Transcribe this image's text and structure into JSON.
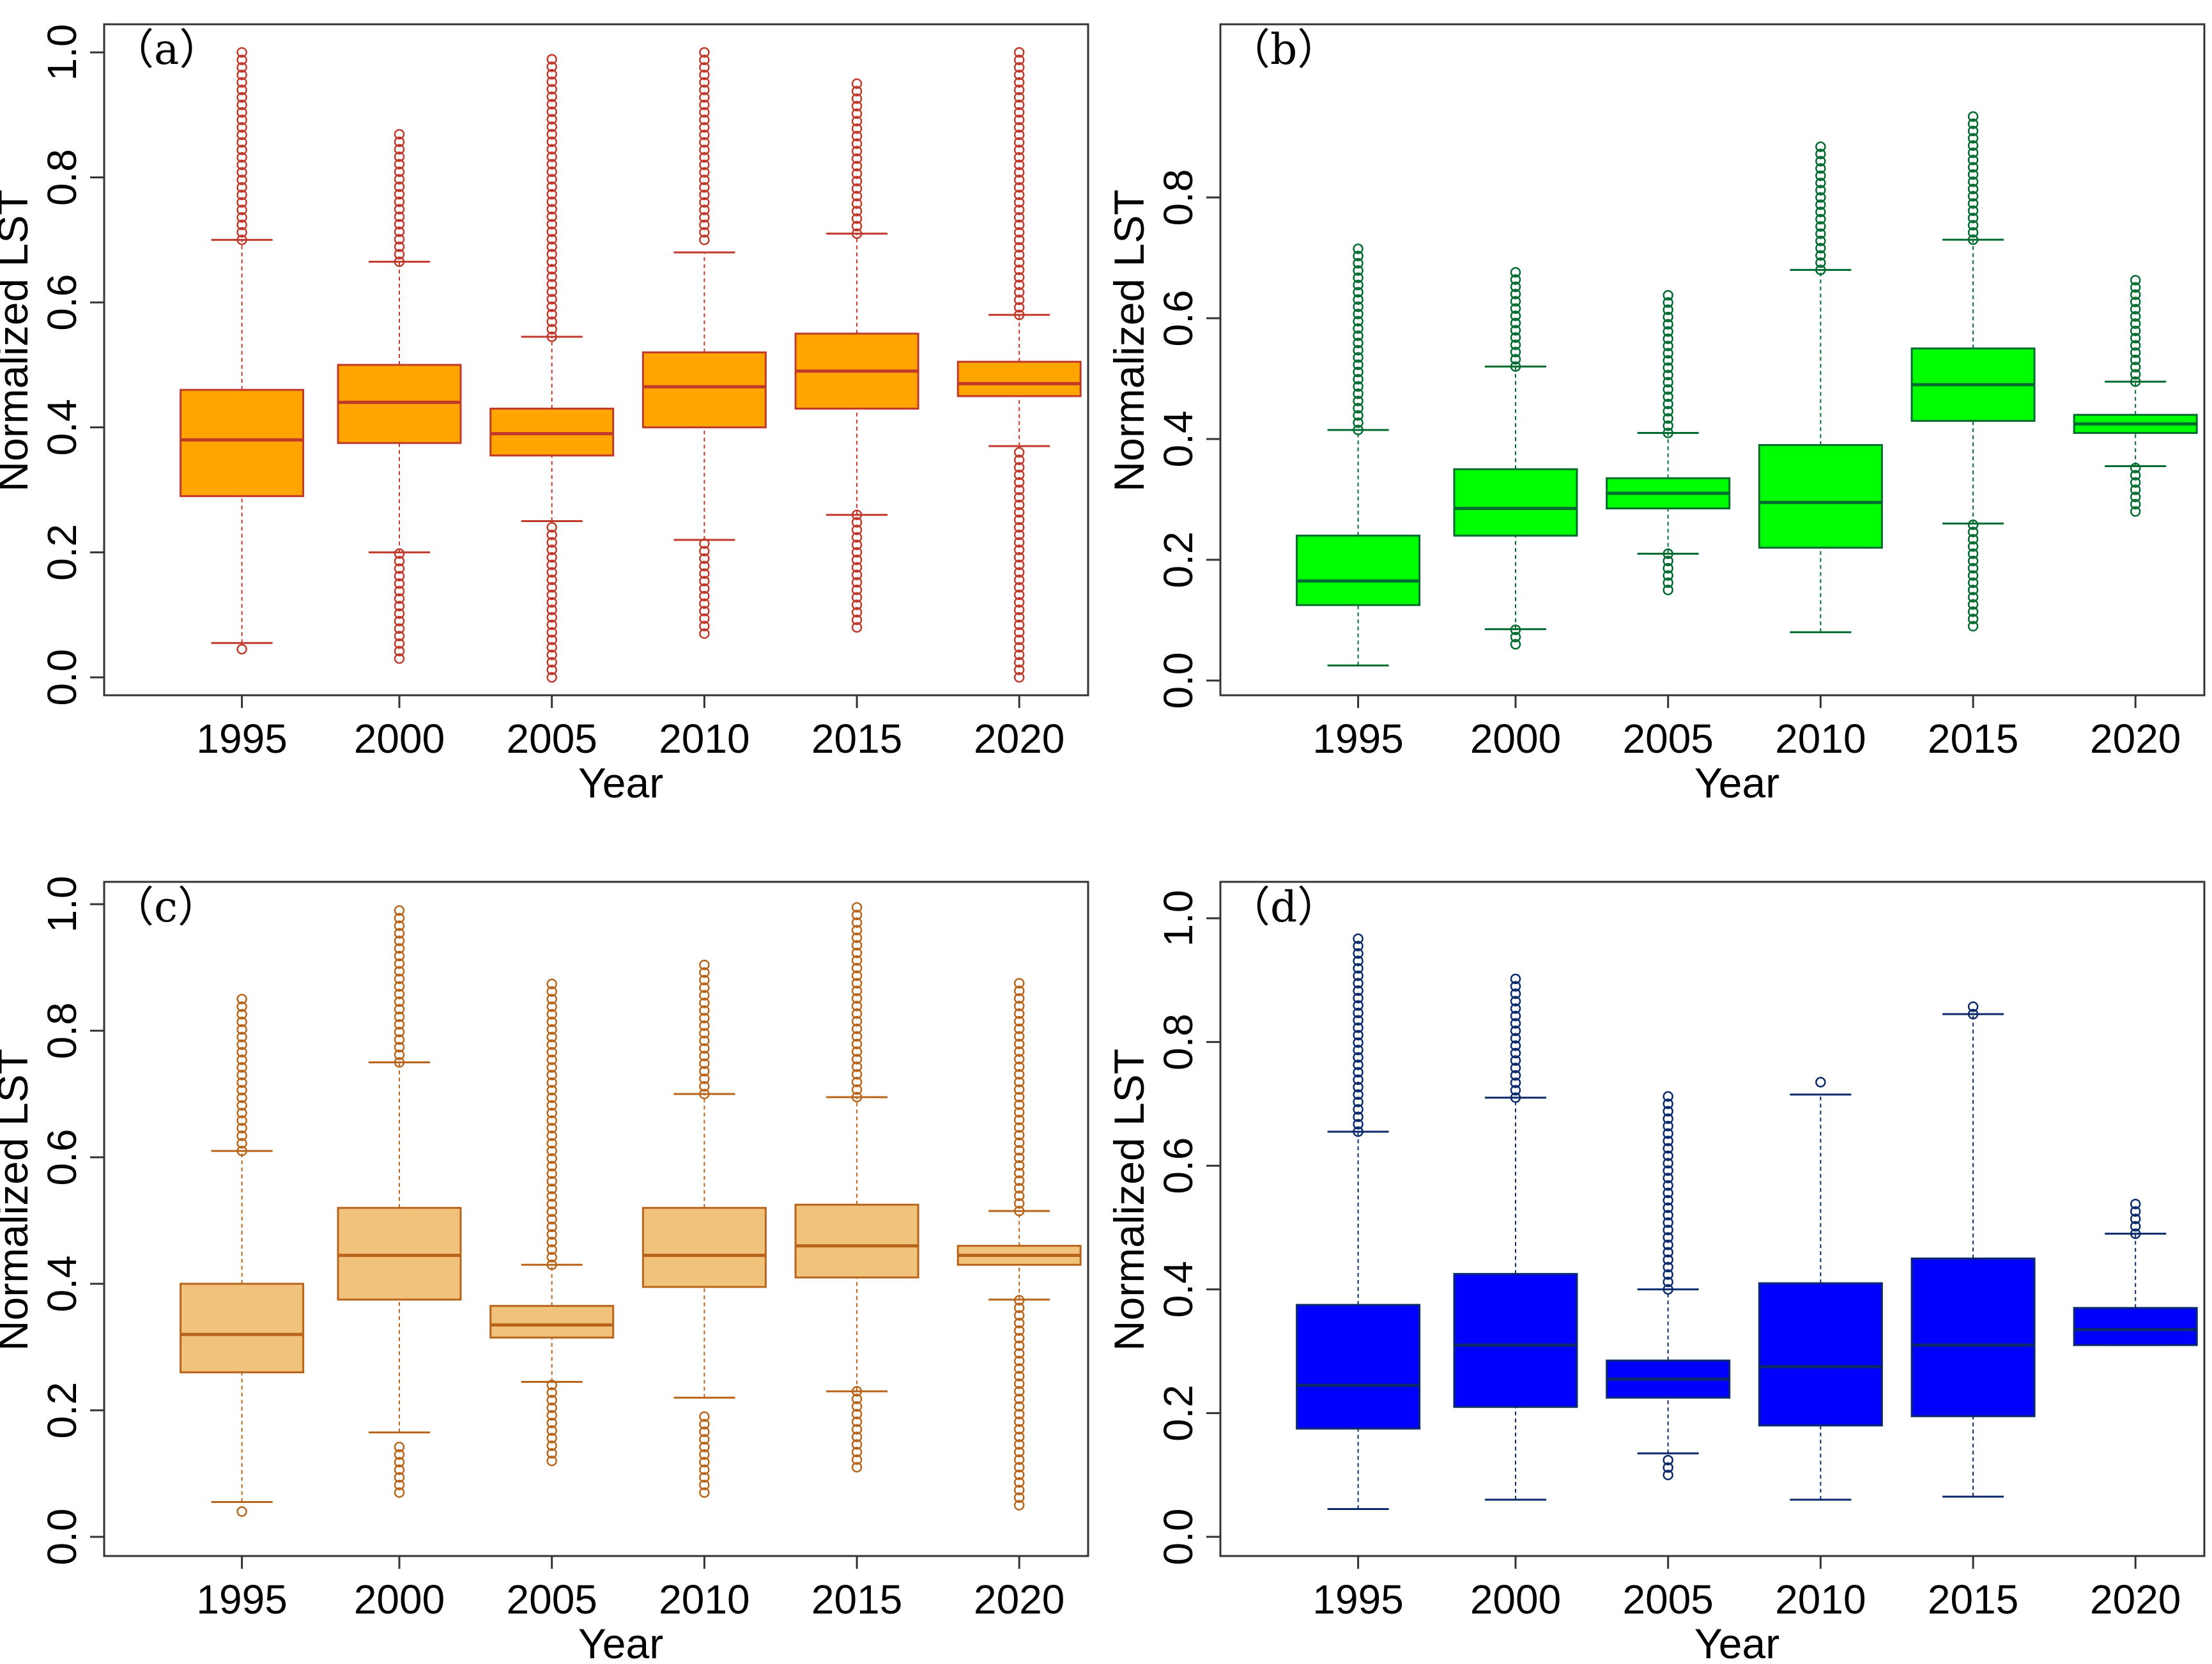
{
  "chart_data": [
    {
      "type": "box",
      "panel_label": "（a）",
      "xlabel": "Year",
      "ylabel": "Normalized LST",
      "ylim": [
        0,
        1.0
      ],
      "yticks": [
        "0.0",
        "0.2",
        "0.4",
        "0.6",
        "0.8",
        "1.0"
      ],
      "categories": [
        "1995",
        "2000",
        "2005",
        "2010",
        "2015",
        "2020"
      ],
      "colors": {
        "box_fill": "#FFA500",
        "line": "#C0392B"
      },
      "boxes": [
        {
          "q1": 0.29,
          "median": 0.38,
          "q3": 0.46,
          "whisker_low": 0.055,
          "whisker_high": 0.7,
          "outliers_low": [
            0.045
          ],
          "outliers_high": [
            0.7,
            1.0
          ]
        },
        {
          "q1": 0.375,
          "median": 0.44,
          "q3": 0.5,
          "whisker_low": 0.2,
          "whisker_high": 0.665,
          "outliers_low": [
            0.03,
            0.2
          ],
          "outliers_high": [
            0.665,
            0.88
          ]
        },
        {
          "q1": 0.355,
          "median": 0.39,
          "q3": 0.43,
          "whisker_low": 0.25,
          "whisker_high": 0.545,
          "outliers_low": [
            0.0,
            0.25
          ],
          "outliers_high": [
            0.545,
            1.0
          ]
        },
        {
          "q1": 0.4,
          "median": 0.465,
          "q3": 0.52,
          "whisker_low": 0.22,
          "whisker_high": 0.68,
          "outliers_low": [
            0.07,
            0.22
          ],
          "outliers_high": [
            0.7,
            1.0
          ]
        },
        {
          "q1": 0.43,
          "median": 0.49,
          "q3": 0.55,
          "whisker_low": 0.26,
          "whisker_high": 0.71,
          "outliers_low": [
            0.08,
            0.26
          ],
          "outliers_high": [
            0.71,
            0.95
          ]
        },
        {
          "q1": 0.45,
          "median": 0.47,
          "q3": 0.505,
          "whisker_low": 0.37,
          "whisker_high": 0.58,
          "outliers_low": [
            0.0,
            0.37
          ],
          "outliers_high": [
            0.58,
            1.0
          ]
        }
      ]
    },
    {
      "type": "box",
      "panel_label": "（b）",
      "xlabel": "Year",
      "ylabel": "Normalized LST",
      "ylim": [
        0,
        0.95
      ],
      "yticks": [
        "0.0",
        "0.2",
        "0.4",
        "0.6",
        "0.8"
      ],
      "categories": [
        "1995",
        "2000",
        "2005",
        "2010",
        "2015",
        "2020"
      ],
      "colors": {
        "box_fill": "#00FF00",
        "line": "#006B2E"
      },
      "boxes": [
        {
          "q1": 0.125,
          "median": 0.165,
          "q3": 0.24,
          "whisker_low": 0.025,
          "whisker_high": 0.415,
          "outliers_low": [],
          "outliers_high": [
            0.415,
            0.72
          ]
        },
        {
          "q1": 0.24,
          "median": 0.285,
          "q3": 0.35,
          "whisker_low": 0.085,
          "whisker_high": 0.52,
          "outliers_low": [
            0.06,
            0.085
          ],
          "outliers_high": [
            0.52,
            0.685
          ]
        },
        {
          "q1": 0.285,
          "median": 0.31,
          "q3": 0.335,
          "whisker_low": 0.21,
          "whisker_high": 0.41,
          "outliers_low": [
            0.15,
            0.21
          ],
          "outliers_high": [
            0.41,
            0.64
          ]
        },
        {
          "q1": 0.22,
          "median": 0.295,
          "q3": 0.39,
          "whisker_low": 0.08,
          "whisker_high": 0.68,
          "outliers_low": [],
          "outliers_high": [
            0.68,
            0.885
          ]
        },
        {
          "q1": 0.43,
          "median": 0.49,
          "q3": 0.55,
          "whisker_low": 0.26,
          "whisker_high": 0.73,
          "outliers_low": [
            0.09,
            0.26
          ],
          "outliers_high": [
            0.73,
            0.945
          ]
        },
        {
          "q1": 0.41,
          "median": 0.425,
          "q3": 0.44,
          "whisker_low": 0.355,
          "whisker_high": 0.495,
          "outliers_low": [
            0.28,
            0.355
          ],
          "outliers_high": [
            0.495,
            0.67
          ]
        }
      ]
    },
    {
      "type": "box",
      "panel_label": "（c）",
      "xlabel": "Year",
      "ylabel": "Normalized LST",
      "ylim": [
        0,
        1.0
      ],
      "yticks": [
        "0.0",
        "0.2",
        "0.4",
        "0.6",
        "0.8",
        "1.0"
      ],
      "categories": [
        "1995",
        "2000",
        "2005",
        "2010",
        "2015",
        "2020"
      ],
      "colors": {
        "box_fill": "#F0C27B",
        "line": "#B8651B"
      },
      "boxes": [
        {
          "q1": 0.26,
          "median": 0.32,
          "q3": 0.4,
          "whisker_low": 0.055,
          "whisker_high": 0.61,
          "outliers_low": [
            0.04
          ],
          "outliers_high": [
            0.61,
            0.85
          ]
        },
        {
          "q1": 0.375,
          "median": 0.445,
          "q3": 0.52,
          "whisker_low": 0.165,
          "whisker_high": 0.75,
          "outliers_low": [
            0.07,
            0.15
          ],
          "outliers_high": [
            0.75,
            1.0
          ]
        },
        {
          "q1": 0.315,
          "median": 0.335,
          "q3": 0.365,
          "whisker_low": 0.245,
          "whisker_high": 0.43,
          "outliers_low": [
            0.12,
            0.245
          ],
          "outliers_high": [
            0.43,
            0.88
          ]
        },
        {
          "q1": 0.395,
          "median": 0.445,
          "q3": 0.52,
          "whisker_low": 0.22,
          "whisker_high": 0.7,
          "outliers_low": [
            0.07,
            0.2
          ],
          "outliers_high": [
            0.7,
            0.91
          ]
        },
        {
          "q1": 0.41,
          "median": 0.46,
          "q3": 0.525,
          "whisker_low": 0.23,
          "whisker_high": 0.695,
          "outliers_low": [
            0.11,
            0.23
          ],
          "outliers_high": [
            0.695,
            1.0
          ]
        },
        {
          "q1": 0.43,
          "median": 0.445,
          "q3": 0.46,
          "whisker_low": 0.375,
          "whisker_high": 0.515,
          "outliers_low": [
            0.05,
            0.375
          ],
          "outliers_high": [
            0.515,
            0.875
          ]
        }
      ]
    },
    {
      "type": "box",
      "panel_label": "（d）",
      "xlabel": "Year",
      "ylabel": "Normalized LST",
      "ylim": [
        0,
        1.0
      ],
      "yticks": [
        "0.0",
        "0.2",
        "0.4",
        "0.6",
        "0.8",
        "1.0"
      ],
      "categories": [
        "1995",
        "2000",
        "2005",
        "2010",
        "2015",
        "2020"
      ],
      "colors": {
        "box_fill": "#0000FF",
        "line": "#0A2A6B"
      },
      "boxes": [
        {
          "q1": 0.175,
          "median": 0.245,
          "q3": 0.375,
          "whisker_low": 0.045,
          "whisker_high": 0.655,
          "outliers_low": [],
          "outliers_high": [
            0.655,
            0.97
          ]
        },
        {
          "q1": 0.21,
          "median": 0.31,
          "q3": 0.425,
          "whisker_low": 0.06,
          "whisker_high": 0.71,
          "outliers_low": [],
          "outliers_high": [
            0.71,
            0.91
          ]
        },
        {
          "q1": 0.225,
          "median": 0.255,
          "q3": 0.285,
          "whisker_low": 0.135,
          "whisker_high": 0.4,
          "outliers_low": [
            0.1,
            0.135
          ],
          "outliers_high": [
            0.4,
            0.715
          ]
        },
        {
          "q1": 0.18,
          "median": 0.275,
          "q3": 0.41,
          "whisker_low": 0.06,
          "whisker_high": 0.715,
          "outliers_low": [],
          "outliers_high": [
            0.735
          ]
        },
        {
          "q1": 0.195,
          "median": 0.31,
          "q3": 0.45,
          "whisker_low": 0.065,
          "whisker_high": 0.845,
          "outliers_low": [],
          "outliers_high": [
            0.845,
            0.86
          ]
        },
        {
          "q1": 0.31,
          "median": 0.335,
          "q3": 0.37,
          "whisker_low": 0.31,
          "whisker_high": 0.49,
          "outliers_low": [],
          "outliers_high": [
            0.49,
            0.54
          ]
        }
      ]
    }
  ]
}
